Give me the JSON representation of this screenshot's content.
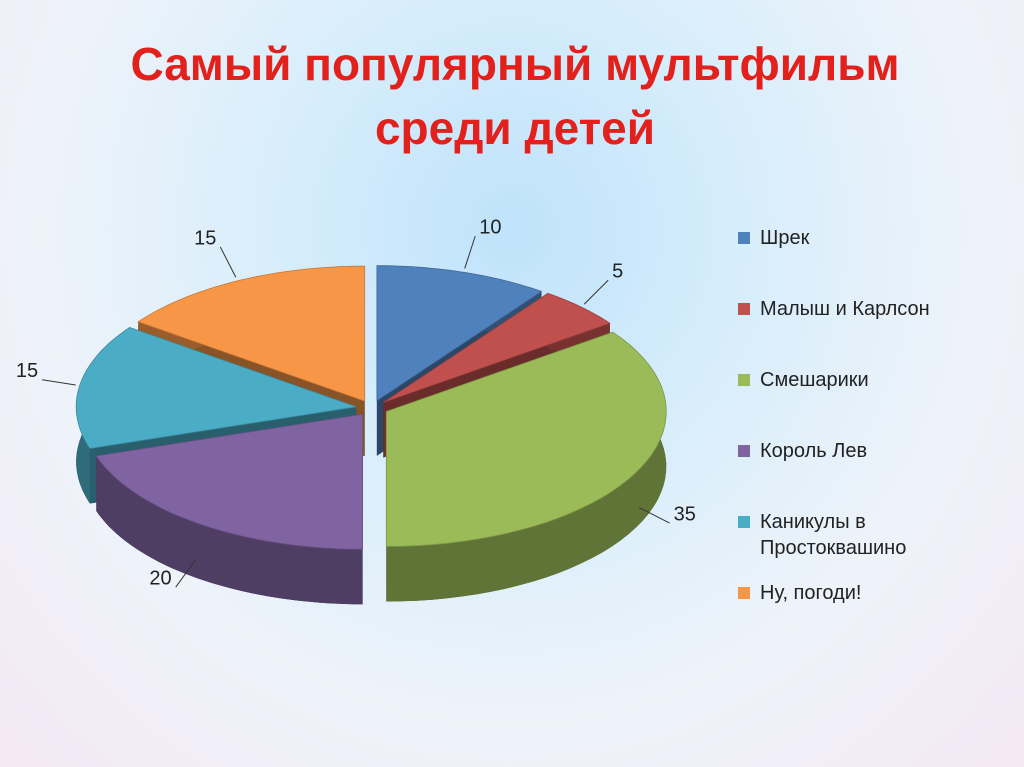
{
  "chart_data": {
    "type": "pie",
    "title": "Самый популярный мультфильм среди детей",
    "categories": [
      "Шрек",
      "Малыш и Карлсон",
      "Смешарики",
      "Король Лев",
      "Каникулы в Простоквашино",
      "Ну, погоди!"
    ],
    "values": [
      10,
      5,
      35,
      20,
      15,
      15
    ],
    "colors": [
      "#4f81bd",
      "#c0504d",
      "#9bbb59",
      "#8064a2",
      "#4bacc6",
      "#f79646"
    ],
    "legend": "right"
  }
}
